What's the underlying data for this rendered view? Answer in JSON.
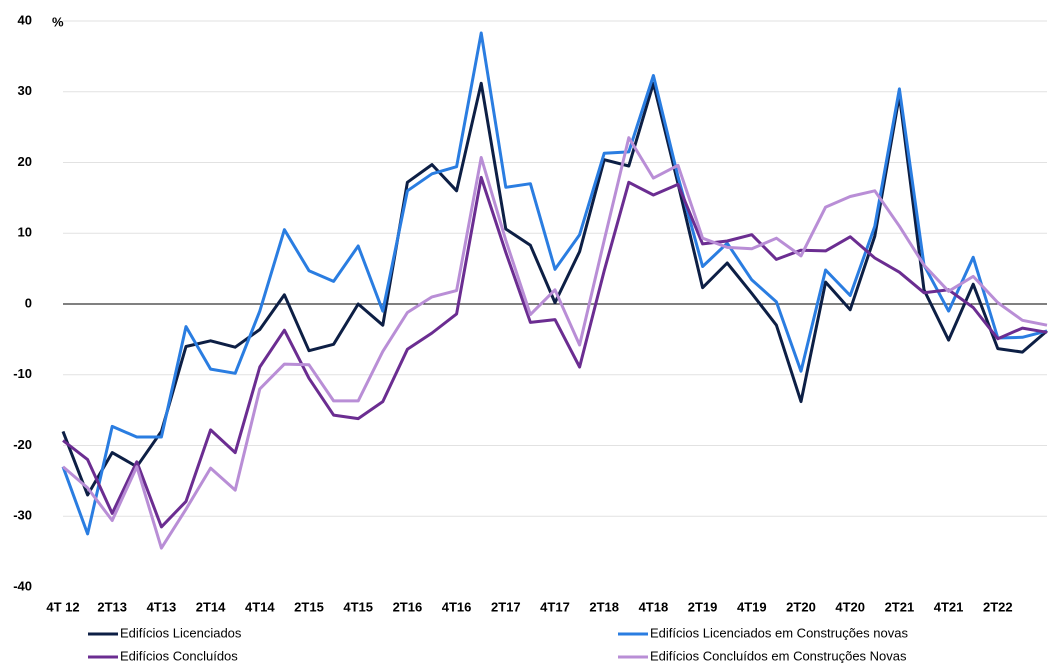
{
  "chart_data": {
    "type": "line",
    "y_unit": "%",
    "categories": [
      "4T 12",
      null,
      "2T13",
      null,
      "4T13",
      null,
      "2T14",
      null,
      "4T14",
      null,
      "2T15",
      null,
      "4T15",
      null,
      "2T16",
      null,
      "4T16",
      null,
      "2T17",
      null,
      "4T17",
      null,
      "2T18",
      null,
      "4T18",
      null,
      "2T19",
      null,
      "4T19",
      null,
      "2T20",
      null,
      "4T20",
      null,
      "2T21",
      null,
      "4T21",
      null,
      "2T22",
      null,
      null
    ],
    "series": [
      {
        "name": "Edifícios Licenciados",
        "color": "#0d1f45",
        "values": [
          -18,
          -27,
          -21,
          -23,
          -18,
          -6,
          -5.2,
          -6.1,
          -3.6,
          1.3,
          -6.6,
          -5.7,
          0,
          -3,
          17.2,
          19.7,
          16,
          31.2,
          10.6,
          8.3,
          0.2,
          7.4,
          20.4,
          19.5,
          31.2,
          17,
          2.3,
          5.8,
          1.5,
          -3,
          -13.8,
          3.1,
          -0.8,
          9.6,
          29.5,
          2,
          -5.1,
          2.8,
          -6.3,
          -6.8,
          -3.8
        ]
      },
      {
        "name": "Edifícios Licenciados em Construções novas",
        "color": "#2a7de1",
        "values": [
          -23,
          -32.5,
          -17.3,
          -18.8,
          -18.8,
          -3.2,
          -9.2,
          -9.8,
          -1,
          10.5,
          4.7,
          3.2,
          8.2,
          -1,
          16,
          18.4,
          19.4,
          38.3,
          16.5,
          17,
          4.9,
          9.8,
          21.3,
          21.5,
          32.3,
          18,
          5.3,
          8.6,
          3.4,
          0.3,
          -9.5,
          4.8,
          1.2,
          11,
          30.4,
          5.5,
          -1,
          6.6,
          -4.8,
          -4.7,
          -3.8
        ]
      },
      {
        "name": "Edifícios Concluídos",
        "color": "#6b2d91",
        "values": [
          -19.3,
          -22,
          -29.6,
          -22.3,
          -31.5,
          -27.9,
          -17.8,
          -21,
          -8.9,
          -3.7,
          -10.5,
          -15.7,
          -16.2,
          -13.8,
          -6.4,
          -4.1,
          -1.4,
          17.9,
          7.3,
          -2.6,
          -2.2,
          -8.9,
          4.7,
          17.2,
          15.4,
          16.9,
          8.5,
          8.9,
          9.8,
          6.3,
          7.6,
          7.5,
          9.5,
          6.5,
          4.5,
          1.6,
          2,
          -0.5,
          -4.9,
          -3.4,
          -4
        ]
      },
      {
        "name": "Edifícios Concluídos em Construções Novas",
        "color": "#b98ed6",
        "values": [
          -23,
          -26,
          -30.6,
          -23,
          -34.5,
          -29,
          -23.2,
          -26.3,
          -12,
          -8.5,
          -8.6,
          -13.7,
          -13.7,
          -6.7,
          -1.2,
          1,
          1.9,
          20.7,
          9,
          -1.5,
          2,
          -5.8,
          9,
          23.5,
          17.8,
          19.6,
          9.3,
          8,
          7.8,
          9.3,
          6.8,
          13.7,
          15.2,
          16,
          11,
          5.5,
          1.8,
          3.9,
          0.2,
          -2.3,
          -3
        ]
      }
    ],
    "ylim": [
      -40,
      40
    ],
    "yticks": [
      -40,
      -30,
      -20,
      -10,
      0,
      10,
      20,
      30,
      40
    ],
    "grid": true
  }
}
